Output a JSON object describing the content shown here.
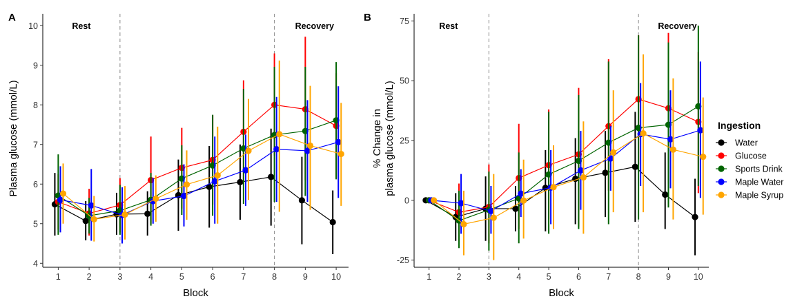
{
  "legend": {
    "title": "Ingestion",
    "items": [
      {
        "label": "Water",
        "color": "#000000"
      },
      {
        "label": "Glucose",
        "color": "#ff0000"
      },
      {
        "label": "Sports Drink",
        "color": "#006400"
      },
      {
        "label": "Maple Water",
        "color": "#0000ff"
      },
      {
        "label": "Maple Syrup",
        "color": "#ffa500"
      }
    ]
  },
  "chart_data": [
    {
      "type": "line",
      "panel_label": "A",
      "xlabel": "Block",
      "ylabel": "Plasma glucose (mmol/L)",
      "ylim": [
        3.9,
        10.3
      ],
      "yticks": [
        4,
        5,
        6,
        7,
        8,
        9,
        10
      ],
      "x": [
        1,
        2,
        3,
        4,
        5,
        6,
        7,
        8,
        9,
        10
      ],
      "phase_lines": [
        3,
        8
      ],
      "annotations": [
        {
          "text": "Rest",
          "x": 1.75
        },
        {
          "text": "Recovery",
          "x": 9.3
        }
      ],
      "series": [
        {
          "name": "Water",
          "color": "#000000",
          "values": [
            5.49,
            5.07,
            5.24,
            5.25,
            5.72,
            5.93,
            6.05,
            6.18,
            5.59,
            5.04
          ],
          "err_low": [
            4.7,
            4.58,
            4.72,
            4.7,
            4.82,
            4.9,
            5.1,
            4.95,
            4.48,
            4.23
          ],
          "err_high": [
            6.28,
            5.57,
            5.78,
            5.82,
            6.62,
            6.96,
            7.0,
            7.4,
            6.69,
            5.84
          ]
        },
        {
          "name": "Glucose",
          "color": "#ff0000",
          "values": [
            5.55,
            5.26,
            5.47,
            6.1,
            6.41,
            6.61,
            7.32,
            8.0,
            7.89,
            7.47
          ],
          "err_low": [
            4.85,
            4.7,
            4.78,
            5.0,
            5.38,
            5.48,
            6.0,
            6.72,
            6.1,
            6.15
          ],
          "err_high": [
            6.25,
            5.88,
            6.15,
            7.2,
            7.42,
            7.74,
            8.62,
            9.3,
            9.72,
            8.8
          ]
        },
        {
          "name": "Sports Drink",
          "color": "#006400",
          "values": [
            5.71,
            5.2,
            5.33,
            5.6,
            6.14,
            6.47,
            6.9,
            7.24,
            7.34,
            7.61
          ],
          "err_low": [
            4.72,
            4.75,
            4.72,
            4.95,
            5.22,
            5.2,
            5.5,
            5.55,
            5.7,
            6.12
          ],
          "err_high": [
            6.75,
            5.65,
            5.98,
            6.28,
            6.98,
            7.75,
            8.4,
            8.96,
            8.96,
            9.08
          ]
        },
        {
          "name": "Maple Water",
          "color": "#0000ff",
          "values": [
            5.6,
            5.46,
            5.22,
            5.57,
            5.7,
            6.07,
            6.35,
            6.88,
            6.84,
            7.06
          ],
          "err_low": [
            4.78,
            4.57,
            4.5,
            5.0,
            4.93,
            5.0,
            5.45,
            5.55,
            5.55,
            5.65
          ],
          "err_high": [
            6.45,
            6.38,
            5.92,
            6.16,
            6.5,
            7.2,
            7.25,
            8.2,
            8.12,
            8.47
          ]
        },
        {
          "name": "Maple Syrup",
          "color": "#ffa500",
          "values": [
            5.76,
            5.11,
            5.23,
            5.63,
            5.99,
            6.22,
            6.84,
            7.26,
            6.97,
            6.76
          ],
          "err_low": [
            5.0,
            4.55,
            4.6,
            5.05,
            5.1,
            5.0,
            5.6,
            5.3,
            5.35,
            5.45
          ],
          "err_high": [
            6.52,
            5.7,
            5.95,
            6.22,
            6.85,
            7.45,
            8.15,
            9.12,
            8.48,
            8.05
          ]
        }
      ]
    },
    {
      "type": "line",
      "panel_label": "B",
      "xlabel": "Block",
      "ylabel_lines": [
        "% Change in",
        "plasma glucose (mmol/L)"
      ],
      "ylim": [
        -28,
        78
      ],
      "yticks": [
        -25,
        0,
        25,
        50,
        75
      ],
      "x": [
        1,
        2,
        3,
        4,
        5,
        6,
        7,
        8,
        9,
        10
      ],
      "phase_lines": [
        3,
        8
      ],
      "annotations": [
        {
          "text": "Rest",
          "x": 1.65
        },
        {
          "text": "Recovery",
          "x": 9.3
        }
      ],
      "series": [
        {
          "name": "Water",
          "color": "#000000",
          "values": [
            0,
            -7,
            -3.5,
            -3.5,
            5.2,
            9,
            11.5,
            14,
            2.4,
            -7
          ],
          "err_low": [
            0,
            -17,
            -17,
            -13,
            -13,
            -10,
            -7,
            -9,
            -12,
            -23
          ],
          "err_high": [
            0,
            3,
            10,
            6,
            21,
            26,
            29,
            37,
            20,
            9
          ]
        },
        {
          "name": "Glucose",
          "color": "#ff0000",
          "values": [
            0,
            -5,
            -2.8,
            9.3,
            14.7,
            19.2,
            31,
            42.3,
            38.5,
            32.8
          ],
          "err_low": [
            0,
            -17,
            -18,
            -12,
            -8,
            -11,
            4,
            15,
            7,
            3
          ],
          "err_high": [
            0,
            7,
            15,
            32,
            38,
            47,
            59,
            69,
            70,
            62
          ]
        },
        {
          "name": "Sports Drink",
          "color": "#006400",
          "values": [
            0,
            -8.5,
            -4,
            0.8,
            10.8,
            16.5,
            24.1,
            30.3,
            31.6,
            39.3
          ],
          "err_low": [
            0,
            -20,
            -21,
            -18,
            -14,
            -12,
            -10,
            -8,
            -3,
            6
          ],
          "err_high": [
            0,
            4,
            12,
            20,
            37,
            44,
            58,
            69,
            66,
            73
          ]
        },
        {
          "name": "Maple Water",
          "color": "#0000ff",
          "values": [
            0,
            -1.2,
            -4.5,
            2.8,
            5.3,
            12.5,
            17.5,
            27.7,
            25.5,
            29.3
          ],
          "err_low": [
            0,
            -14,
            -14,
            -7,
            -10,
            -4,
            4,
            6,
            5,
            1
          ],
          "err_high": [
            0,
            11,
            6,
            13,
            21,
            29,
            31,
            49,
            46,
            58
          ]
        },
        {
          "name": "Maple Syrup",
          "color": "#ffa500",
          "values": [
            0,
            -10,
            -7.3,
            -0.1,
            5.5,
            9.6,
            20,
            28,
            21.2,
            18.2
          ],
          "err_low": [
            0,
            -23,
            -25,
            -16,
            -12,
            -14,
            -5,
            -5,
            -8,
            -6
          ],
          "err_high": [
            0,
            4,
            11,
            17,
            23,
            33,
            46,
            61,
            51,
            43
          ]
        }
      ]
    }
  ]
}
